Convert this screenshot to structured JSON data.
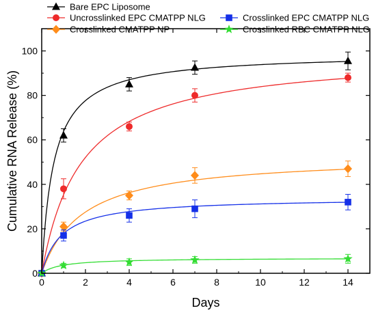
{
  "chart_data": {
    "type": "line",
    "title": "",
    "xlabel": "Days",
    "ylabel": "Cumulative RNA Release (%)",
    "xlim": [
      0,
      15
    ],
    "ylim": [
      0,
      110
    ],
    "xticks": [
      "0",
      "2",
      "4",
      "6",
      "8",
      "10",
      "12",
      "14"
    ],
    "yticks": [
      "0",
      "20",
      "40",
      "60",
      "80",
      "100"
    ],
    "grid": false,
    "legend_position": "top",
    "series": [
      {
        "name": "Bare EPC Liposome",
        "color": "#000000",
        "marker": "triangle",
        "x": [
          0,
          1,
          4,
          7,
          14
        ],
        "y": [
          0,
          62,
          85,
          92.5,
          95.5
        ],
        "err": [
          0,
          3,
          3,
          3,
          4
        ],
        "fit": {
          "vmax": 99,
          "k": 0.55
        }
      },
      {
        "name": "Uncrosslinked EPC CMATPP NLG",
        "color": "#ee2b2b",
        "marker": "circle",
        "x": [
          0,
          1,
          4,
          7,
          14
        ],
        "y": [
          0,
          38,
          66,
          80,
          88
        ],
        "err": [
          0,
          4.5,
          2,
          3,
          2
        ],
        "fit": {
          "vmax": 99,
          "k": 1.8
        }
      },
      {
        "name": "Crosslinked CMATPP NP",
        "color": "#ff8c1a",
        "marker": "diamond",
        "x": [
          0,
          1,
          4,
          7,
          14
        ],
        "y": [
          0,
          21,
          35,
          44,
          47
        ],
        "err": [
          0,
          2,
          2,
          3.5,
          3.5
        ],
        "fit": {
          "vmax": 53,
          "k": 1.85
        }
      },
      {
        "name": "Crosslinked EPC CMATPP NLG",
        "color": "#1530e8",
        "marker": "square",
        "x": [
          0,
          1,
          4,
          7,
          14
        ],
        "y": [
          0,
          17,
          26,
          29,
          32
        ],
        "err": [
          0,
          2.5,
          3,
          4,
          3.5
        ],
        "fit": {
          "vmax": 34,
          "k": 0.9
        }
      },
      {
        "name": "Crosslinked RBC CMATPP NLG",
        "color": "#33dd33",
        "marker": "star",
        "x": [
          0,
          1,
          4,
          7,
          14
        ],
        "y": [
          0,
          3.5,
          5,
          6,
          6.5
        ],
        "err": [
          0,
          1,
          1.5,
          1.5,
          2
        ],
        "fit": {
          "vmax": 6.9,
          "k": 0.9
        }
      }
    ]
  }
}
